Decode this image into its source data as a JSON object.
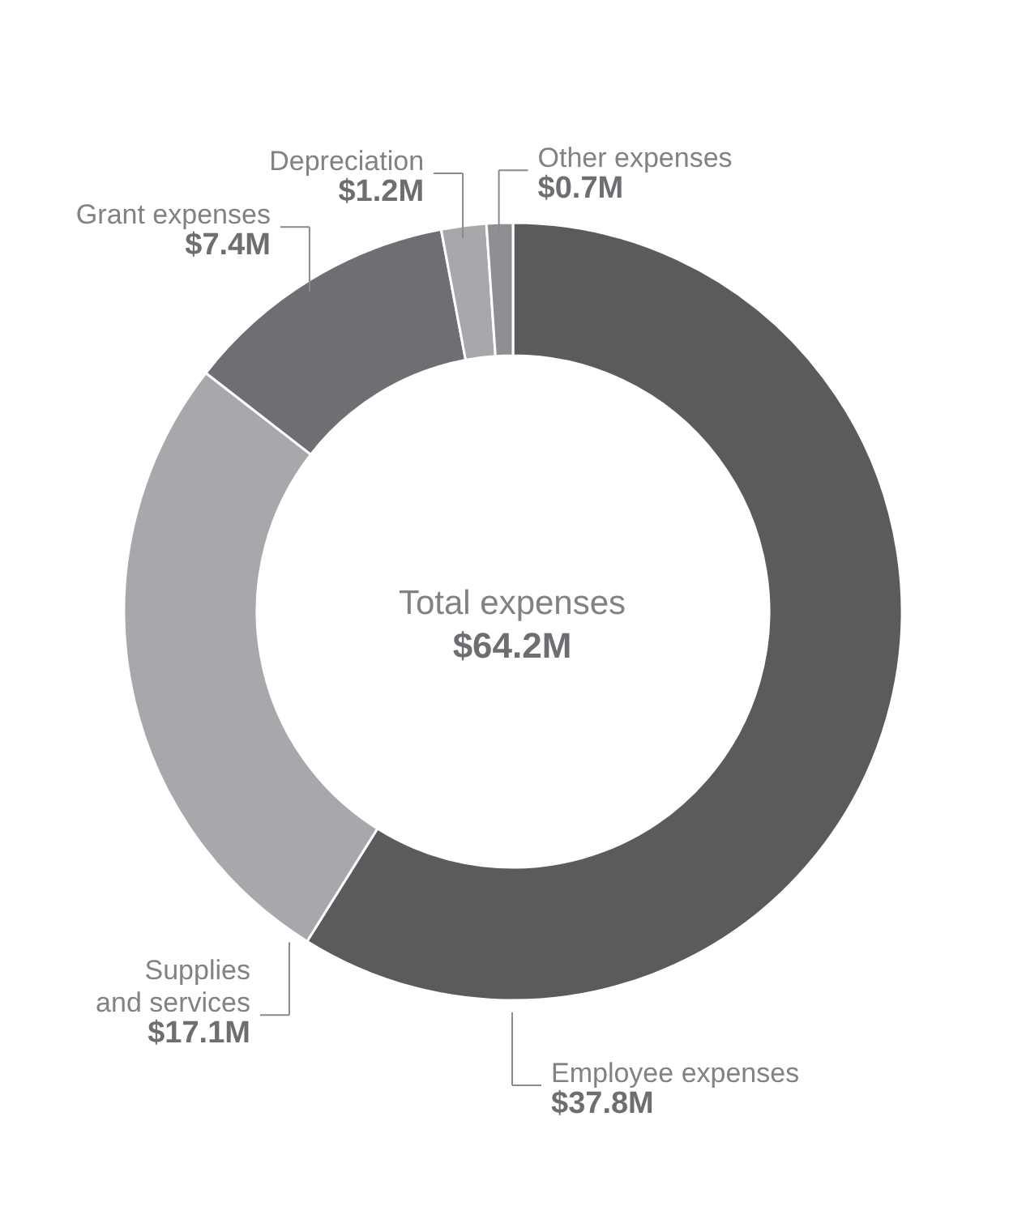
{
  "chart_data": {
    "type": "donut",
    "categories": [
      "Employee expenses",
      "Supplies and services",
      "Grant expenses",
      "Depreciation",
      "Other expenses"
    ],
    "values": [
      37.8,
      17.1,
      7.4,
      1.2,
      0.7
    ],
    "value_labels": [
      "$37.8M",
      "$17.1M",
      "$7.4M",
      "$1.2M",
      "$0.7M"
    ],
    "colors": [
      "#5b5b5e",
      "#a7a8ab",
      "#6e6f73",
      "#a7a8ab",
      "#8e8f92"
    ],
    "annotations": [
      "Total expenses",
      "$64.2M"
    ]
  }
}
